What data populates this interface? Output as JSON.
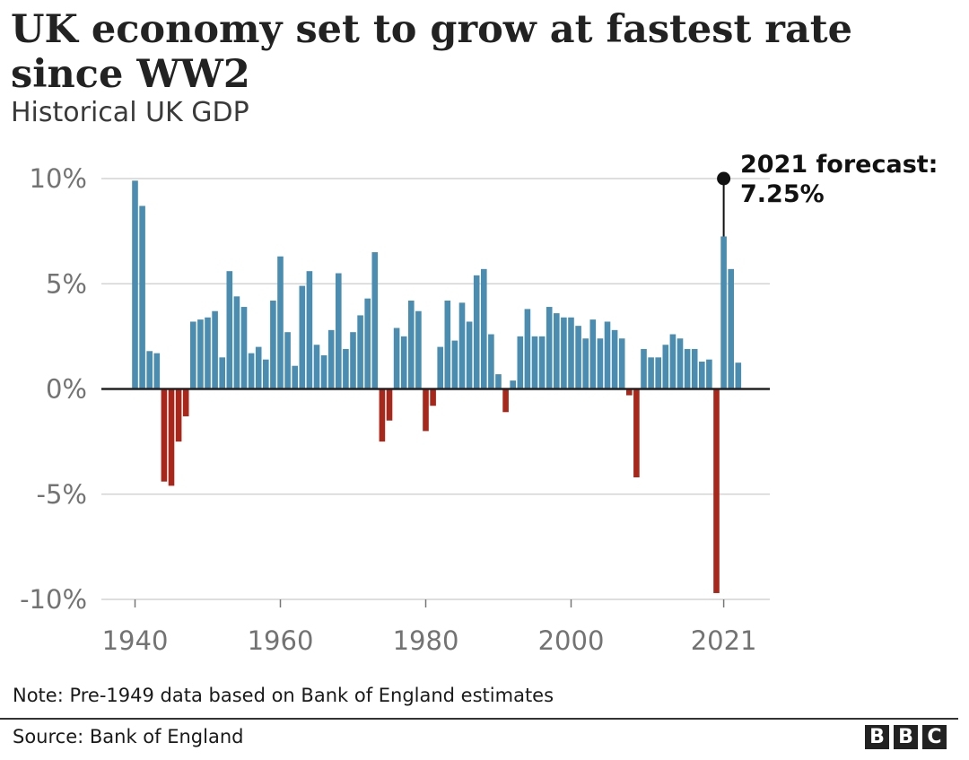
{
  "header": {
    "title": "UK economy set to grow at fastest rate since WW2",
    "subtitle": "Historical UK GDP"
  },
  "footer": {
    "note": "Note: Pre-1949 data based on Bank of England estimates",
    "source": "Source: Bank of England",
    "logo_letters": [
      "B",
      "B",
      "C"
    ]
  },
  "colors": {
    "positive": "#4a8db0",
    "negative": "#a8271a",
    "zero_line": "#222222",
    "grid": "#d4d4d4"
  },
  "chart_data": {
    "type": "bar",
    "title": "UK economy set to grow at fastest rate since WW2",
    "subtitle": "Historical UK GDP",
    "xlabel": "",
    "ylabel": "",
    "ylim": [
      -10,
      10
    ],
    "yticks": [
      10,
      5,
      0,
      -5,
      -10
    ],
    "ytick_labels": [
      "10%",
      "5%",
      "0%",
      "-5%",
      "-10%"
    ],
    "xticks": [
      1940,
      1960,
      1980,
      2000,
      2021
    ],
    "xtick_labels": [
      "1940",
      "1960",
      "1980",
      "2000",
      "2021"
    ],
    "grid": true,
    "x": [
      1940,
      1941,
      1942,
      1943,
      1944,
      1945,
      1946,
      1947,
      1948,
      1949,
      1950,
      1951,
      1952,
      1953,
      1954,
      1955,
      1956,
      1957,
      1958,
      1959,
      1960,
      1961,
      1962,
      1963,
      1964,
      1965,
      1966,
      1967,
      1968,
      1969,
      1970,
      1971,
      1972,
      1973,
      1974,
      1975,
      1976,
      1977,
      1978,
      1979,
      1980,
      1981,
      1982,
      1983,
      1984,
      1985,
      1986,
      1987,
      1988,
      1989,
      1990,
      1991,
      1992,
      1993,
      1994,
      1995,
      1996,
      1997,
      1998,
      1999,
      2000,
      2001,
      2002,
      2003,
      2004,
      2005,
      2006,
      2007,
      2008,
      2009,
      2010,
      2011,
      2012,
      2013,
      2014,
      2015,
      2016,
      2017,
      2018,
      2019,
      2020,
      2021,
      2022,
      2023
    ],
    "values": [
      9.9,
      8.7,
      1.8,
      1.7,
      -4.4,
      -4.6,
      -2.5,
      -1.3,
      3.2,
      3.3,
      3.4,
      3.7,
      1.5,
      5.6,
      4.4,
      3.9,
      1.7,
      2.0,
      1.4,
      4.2,
      6.3,
      2.7,
      1.1,
      4.9,
      5.6,
      2.1,
      1.6,
      2.8,
      5.5,
      1.9,
      2.7,
      3.5,
      4.3,
      6.5,
      -2.5,
      -1.5,
      2.9,
      2.5,
      4.2,
      3.7,
      -2.0,
      -0.8,
      2.0,
      4.2,
      2.3,
      4.1,
      3.2,
      5.4,
      5.7,
      2.6,
      0.7,
      -1.1,
      0.4,
      2.5,
      3.8,
      2.5,
      2.5,
      3.9,
      3.6,
      3.4,
      3.4,
      3.0,
      2.4,
      3.3,
      2.4,
      3.2,
      2.8,
      2.4,
      -0.3,
      -4.2,
      1.9,
      1.5,
      1.5,
      2.1,
      2.6,
      2.4,
      1.9,
      1.9,
      1.3,
      1.4,
      -9.7,
      7.25,
      5.7,
      1.25
    ],
    "annotation": {
      "x": 2021,
      "value": 7.25,
      "marker_value": 10,
      "lines": [
        "2021 forecast:",
        "7.25%"
      ]
    }
  }
}
